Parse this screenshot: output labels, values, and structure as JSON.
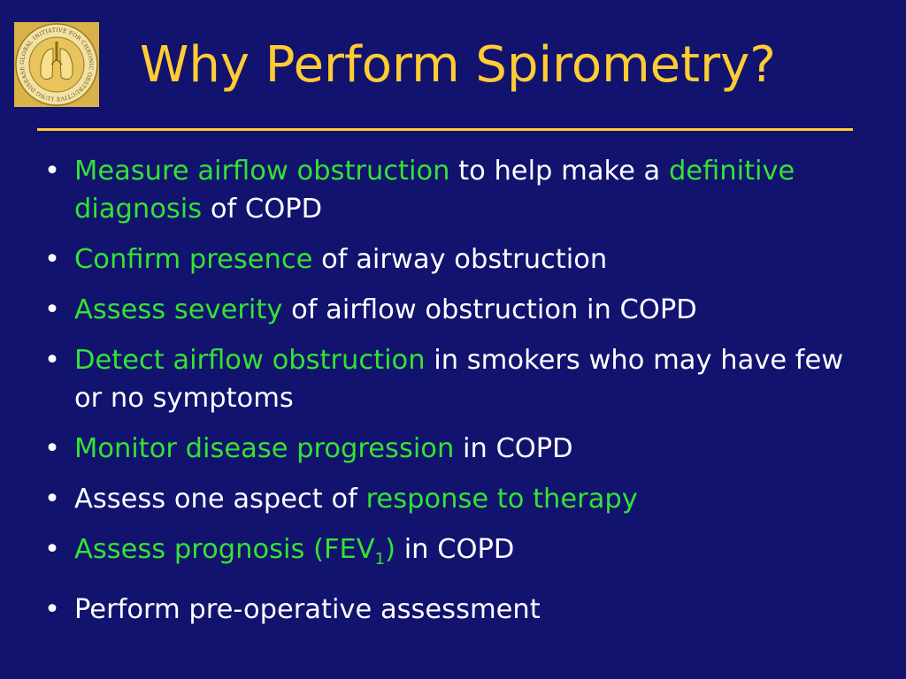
{
  "colors": {
    "background": "#12126f",
    "title": "#ffcc33",
    "highlight": "#33e333",
    "text": "#ffffff"
  },
  "logo": {
    "icon": "gold-lungs-seal-icon",
    "ring_text": "GLOBAL INITIATIVE FOR CHRONIC OBSTRUCTIVE LUNG DISEASE™"
  },
  "title": "Why Perform Spirometry?",
  "bullets": [
    {
      "hl": "Measure airflow obstruction",
      "rest": " to help make a ",
      "hl2": "definitive diagnosis",
      "rest2": " of COPD"
    },
    {
      "hl": "Confirm presence",
      "rest": " of airway obstruction"
    },
    {
      "hl": "Assess severity",
      "rest": " of airflow obstruction in COPD"
    },
    {
      "hl": "Detect airflow obstruction",
      "rest": " in smokers who may have few or no symptoms"
    },
    {
      "hl": "Monitor disease progression",
      "rest": " in COPD"
    },
    {
      "pre": "Assess one aspect of ",
      "hl": "response to therapy"
    },
    {
      "hl": "Assess prognosis (FEV",
      "sub": "1",
      "hl_tail": ")",
      "rest": " in COPD"
    },
    {
      "pre": "Perform pre-operative assessment"
    }
  ]
}
